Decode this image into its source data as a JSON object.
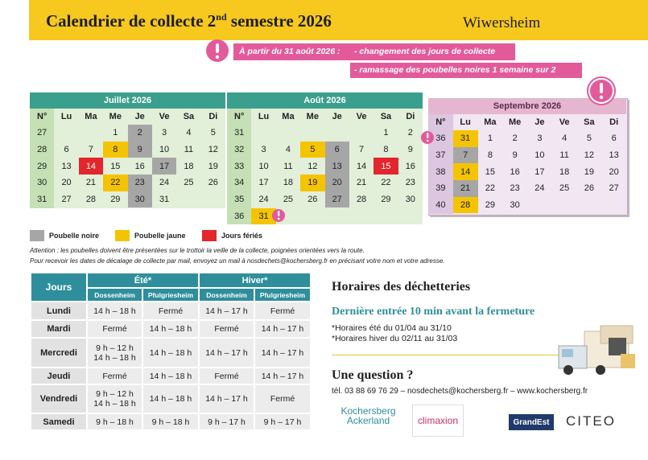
{
  "header": {
    "title": "Calendrier de collecte 2",
    "title_sup": "nd",
    "title_end": " semestre 2026",
    "town": "Wiwersheim"
  },
  "notice": {
    "lead": "À partir du 31 août 2026 :",
    "items": [
      "- changement des jours de collecte",
      "- ramassage des poubelles noires 1 semaine sur 2"
    ]
  },
  "calendars": {
    "columns": [
      "N°",
      "Lu",
      "Ma",
      "Me",
      "Je",
      "Ve",
      "Sa",
      "Di"
    ],
    "months": [
      {
        "name": "Juillet 2026",
        "weeks": [
          {
            "week": 27,
            "days": [
              null,
              null,
              1,
              {
                "day": 2,
                "color": "#a6a6a6"
              },
              3,
              4,
              5
            ]
          },
          {
            "week": 28,
            "days": [
              6,
              7,
              {
                "day": 8,
                "color": "#f5c400"
              },
              {
                "day": 9,
                "color": "#a6a6a6"
              },
              10,
              11,
              12
            ]
          },
          {
            "week": 29,
            "days": [
              13,
              {
                "day": 14,
                "color": "#e3262b"
              },
              15,
              16,
              {
                "day": 17,
                "color": "#a6a6a6"
              },
              18,
              19
            ]
          },
          {
            "week": 30,
            "days": [
              20,
              21,
              {
                "day": 22,
                "color": "#f5c400"
              },
              {
                "day": 23,
                "color": "#a6a6a6"
              },
              24,
              25,
              26
            ]
          },
          {
            "week": 31,
            "days": [
              27,
              28,
              29,
              {
                "day": 30,
                "color": "#a6a6a6"
              },
              31,
              null,
              null
            ]
          }
        ]
      },
      {
        "name": "Août 2026",
        "weeks": [
          {
            "week": 31,
            "days": [
              null,
              null,
              null,
              null,
              null,
              1,
              2
            ]
          },
          {
            "week": 32,
            "days": [
              3,
              4,
              {
                "day": 5,
                "color": "#f5c400"
              },
              {
                "day": 6,
                "color": "#a6a6a6"
              },
              7,
              8,
              9
            ]
          },
          {
            "week": 33,
            "days": [
              10,
              11,
              12,
              {
                "day": 13,
                "color": "#a6a6a6"
              },
              14,
              {
                "day": 15,
                "color": "#e3262b"
              },
              16
            ]
          },
          {
            "week": 34,
            "days": [
              17,
              18,
              {
                "day": 19,
                "color": "#f5c400"
              },
              {
                "day": 20,
                "color": "#a6a6a6"
              },
              21,
              22,
              23
            ]
          },
          {
            "week": 35,
            "days": [
              24,
              25,
              26,
              {
                "day": 27,
                "color": "#a6a6a6"
              },
              28,
              29,
              30
            ]
          },
          {
            "week": 36,
            "days": [
              {
                "day": 31,
                "color": "#f5c400"
              },
              null,
              null,
              null,
              null,
              null,
              null
            ]
          }
        ]
      },
      {
        "name": "Septembre 2026",
        "weeks": [
          {
            "week": 36,
            "days": [
              {
                "day": 31,
                "color": "#f5c400"
              },
              1,
              2,
              3,
              4,
              5,
              6
            ]
          },
          {
            "week": 37,
            "days": [
              {
                "day": 7,
                "color": "#a6a6a6"
              },
              8,
              9,
              10,
              11,
              12,
              13
            ]
          },
          {
            "week": 38,
            "days": [
              {
                "day": 14,
                "color": "#f5c400"
              },
              15,
              16,
              17,
              18,
              19,
              20
            ]
          },
          {
            "week": 39,
            "days": [
              {
                "day": 21,
                "color": "#a6a6a6"
              },
              22,
              23,
              24,
              25,
              26,
              27
            ]
          },
          {
            "week": 40,
            "days": [
              {
                "day": 28,
                "color": "#f5c400"
              },
              29,
              30,
              null,
              null,
              null,
              null
            ]
          }
        ]
      }
    ]
  },
  "legend": [
    {
      "label": "Poubelle noire",
      "color": "#a6a6a6"
    },
    {
      "label": "Poubelle jaune",
      "color": "#f5c400"
    },
    {
      "label": "Jours fériés",
      "color": "#e3262b"
    }
  ],
  "notes": [
    "Attention : les poubelles doivent être présentées sur le trottoir la veille de la collecte, poignées orientées vers la route.",
    "Pour recevoir les dates de décalage de collecte par mail, envoyez un mail à nosdechets@kochersberg.fr en précisant votre nom et votre adresse."
  ],
  "schedule": {
    "header": "Jours",
    "seasons": [
      "Été*",
      "Hiver*"
    ],
    "sites": [
      "Dossenheim",
      "Pfulgriesheim",
      "Dossenheim",
      "Pfulgriesheim"
    ],
    "rows": [
      {
        "day": "Lundi",
        "hours": [
          "14 h – 18 h",
          "Fermé",
          "14 h – 17 h",
          "Fermé"
        ]
      },
      {
        "day": "Mardi",
        "hours": [
          "Fermé",
          "14 h – 18 h",
          "Fermé",
          "14 h – 17 h"
        ]
      },
      {
        "day": "Mercredi",
        "hours": [
          [
            "9 h – 12 h",
            "14 h – 18 h"
          ],
          "14 h – 18 h",
          "14 h – 17 h",
          "14 h – 17 h"
        ]
      },
      {
        "day": "Jeudi",
        "hours": [
          "Fermé",
          "14 h – 18 h",
          "Fermé",
          "14 h – 17 h"
        ]
      },
      {
        "day": "Vendredi",
        "hours": [
          [
            "9 h – 12 h",
            "14 h – 18 h"
          ],
          "14 h – 18 h",
          "14 h – 17 h",
          "Fermé"
        ]
      },
      {
        "day": "Samedi",
        "hours": [
          "9 h – 18 h",
          "9 h – 18 h",
          "9 h – 17 h",
          "9 h – 17 h"
        ]
      }
    ]
  },
  "info": {
    "title": "Horaires des déchetteries",
    "subtitle": "Dernière entrée 10 min avant la fermeture",
    "notes": [
      "*Horaires été du 01/04 au 31/10",
      "*Horaires hiver du 02/11 au 31/03"
    ]
  },
  "contact": {
    "title": "Une question ?",
    "line": "tél. 03 88 69 76 29 – nosdechets@kochersberg.fr – www.kochersberg.fr"
  },
  "logos": {
    "kochersberg": [
      "Kochersberg",
      "Ackerland"
    ],
    "climaxion": "climaxion",
    "region": "GrandEst",
    "citeo": "CITEO"
  }
}
